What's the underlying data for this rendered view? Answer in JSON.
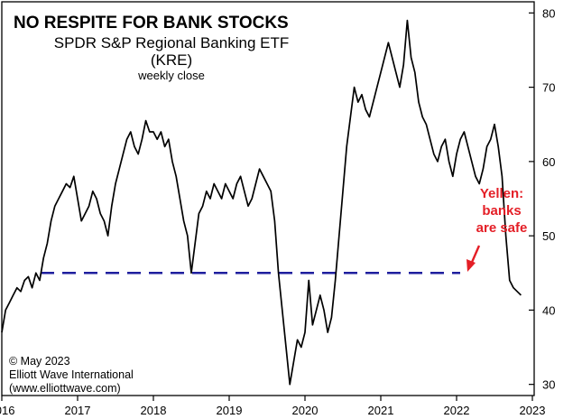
{
  "chart_data": {
    "type": "line",
    "title": "NO RESPITE FOR BANK STOCKS",
    "subtitle_lines": [
      "SPDR S&P Regional Banking ETF",
      "(KRE)",
      "weekly close"
    ],
    "x_ticks": [
      "2016",
      "2017",
      "2018",
      "2019",
      "2020",
      "2021",
      "2022",
      "2023"
    ],
    "y_ticks": [
      30,
      40,
      50,
      60,
      70,
      80
    ],
    "ylim": [
      28.5,
      81.5
    ],
    "xlim": [
      2016.0,
      2023.0
    ],
    "reference_level": 45,
    "annotation": {
      "lines": [
        "Yellen:",
        "banks",
        "are safe"
      ],
      "color": "#e41e26"
    },
    "credit_lines": [
      "© May 2023",
      "Elliott Wave International",
      "(www.elliottwave.com)"
    ],
    "series": [
      {
        "values": [
          [
            2016.0,
            37
          ],
          [
            2016.05,
            40
          ],
          [
            2016.1,
            41
          ],
          [
            2016.15,
            42
          ],
          [
            2016.2,
            43
          ],
          [
            2016.25,
            42.5
          ],
          [
            2016.3,
            44
          ],
          [
            2016.35,
            44.5
          ],
          [
            2016.4,
            43
          ],
          [
            2016.45,
            45
          ],
          [
            2016.5,
            44
          ],
          [
            2016.55,
            47
          ],
          [
            2016.6,
            49
          ],
          [
            2016.65,
            52
          ],
          [
            2016.7,
            54
          ],
          [
            2016.75,
            55
          ],
          [
            2016.8,
            56
          ],
          [
            2016.85,
            57
          ],
          [
            2016.9,
            56.5
          ],
          [
            2016.95,
            58
          ],
          [
            2017.0,
            55
          ],
          [
            2017.05,
            52
          ],
          [
            2017.1,
            53
          ],
          [
            2017.15,
            54
          ],
          [
            2017.2,
            56
          ],
          [
            2017.25,
            55
          ],
          [
            2017.3,
            53
          ],
          [
            2017.35,
            52
          ],
          [
            2017.4,
            50
          ],
          [
            2017.45,
            54
          ],
          [
            2017.5,
            57
          ],
          [
            2017.55,
            59
          ],
          [
            2017.6,
            61
          ],
          [
            2017.65,
            63
          ],
          [
            2017.7,
            64
          ],
          [
            2017.75,
            62
          ],
          [
            2017.8,
            61
          ],
          [
            2017.85,
            63
          ],
          [
            2017.9,
            65.5
          ],
          [
            2017.95,
            64
          ],
          [
            2018.0,
            64
          ],
          [
            2018.05,
            63
          ],
          [
            2018.1,
            64
          ],
          [
            2018.15,
            62
          ],
          [
            2018.2,
            63
          ],
          [
            2018.25,
            60
          ],
          [
            2018.3,
            58
          ],
          [
            2018.35,
            55
          ],
          [
            2018.4,
            52
          ],
          [
            2018.45,
            50
          ],
          [
            2018.5,
            45
          ],
          [
            2018.55,
            49
          ],
          [
            2018.6,
            53
          ],
          [
            2018.65,
            54
          ],
          [
            2018.7,
            56
          ],
          [
            2018.75,
            55
          ],
          [
            2018.8,
            57
          ],
          [
            2018.85,
            56
          ],
          [
            2018.9,
            55
          ],
          [
            2018.95,
            57
          ],
          [
            2019.0,
            56
          ],
          [
            2019.05,
            55
          ],
          [
            2019.1,
            57
          ],
          [
            2019.15,
            58
          ],
          [
            2019.2,
            56
          ],
          [
            2019.25,
            54
          ],
          [
            2019.3,
            55
          ],
          [
            2019.35,
            57
          ],
          [
            2019.4,
            59
          ],
          [
            2019.45,
            58
          ],
          [
            2019.5,
            57
          ],
          [
            2019.55,
            56
          ],
          [
            2019.6,
            52
          ],
          [
            2019.65,
            45
          ],
          [
            2019.7,
            40
          ],
          [
            2019.75,
            35
          ],
          [
            2019.8,
            30
          ],
          [
            2019.85,
            33
          ],
          [
            2019.9,
            36
          ],
          [
            2019.95,
            35
          ],
          [
            2020.0,
            37
          ],
          [
            2020.05,
            44
          ],
          [
            2020.1,
            38
          ],
          [
            2020.15,
            40
          ],
          [
            2020.2,
            42
          ],
          [
            2020.25,
            40
          ],
          [
            2020.3,
            37
          ],
          [
            2020.35,
            39
          ],
          [
            2020.4,
            44
          ],
          [
            2020.45,
            50
          ],
          [
            2020.5,
            56
          ],
          [
            2020.55,
            62
          ],
          [
            2020.6,
            66
          ],
          [
            2020.65,
            70
          ],
          [
            2020.7,
            68
          ],
          [
            2020.75,
            69
          ],
          [
            2020.8,
            67
          ],
          [
            2020.85,
            66
          ],
          [
            2020.9,
            68
          ],
          [
            2020.95,
            70
          ],
          [
            2021.0,
            72
          ],
          [
            2021.05,
            74
          ],
          [
            2021.1,
            76
          ],
          [
            2021.15,
            74
          ],
          [
            2021.2,
            72
          ],
          [
            2021.25,
            70
          ],
          [
            2021.3,
            73
          ],
          [
            2021.35,
            79
          ],
          [
            2021.4,
            74
          ],
          [
            2021.45,
            72
          ],
          [
            2021.5,
            68
          ],
          [
            2021.55,
            66
          ],
          [
            2021.6,
            65
          ],
          [
            2021.65,
            63
          ],
          [
            2021.7,
            61
          ],
          [
            2021.75,
            60
          ],
          [
            2021.8,
            62
          ],
          [
            2021.85,
            63
          ],
          [
            2021.9,
            60
          ],
          [
            2021.95,
            58
          ],
          [
            2022.0,
            61
          ],
          [
            2022.05,
            63
          ],
          [
            2022.1,
            64
          ],
          [
            2022.15,
            62
          ],
          [
            2022.2,
            60
          ],
          [
            2022.25,
            58
          ],
          [
            2022.3,
            57
          ],
          [
            2022.35,
            59
          ],
          [
            2022.4,
            62
          ],
          [
            2022.45,
            63
          ],
          [
            2022.5,
            65
          ],
          [
            2022.55,
            62
          ],
          [
            2022.6,
            58
          ],
          [
            2022.65,
            50
          ],
          [
            2022.7,
            44
          ],
          [
            2022.75,
            43
          ],
          [
            2022.8,
            42.5
          ],
          [
            2022.85,
            42
          ]
        ]
      }
    ]
  }
}
